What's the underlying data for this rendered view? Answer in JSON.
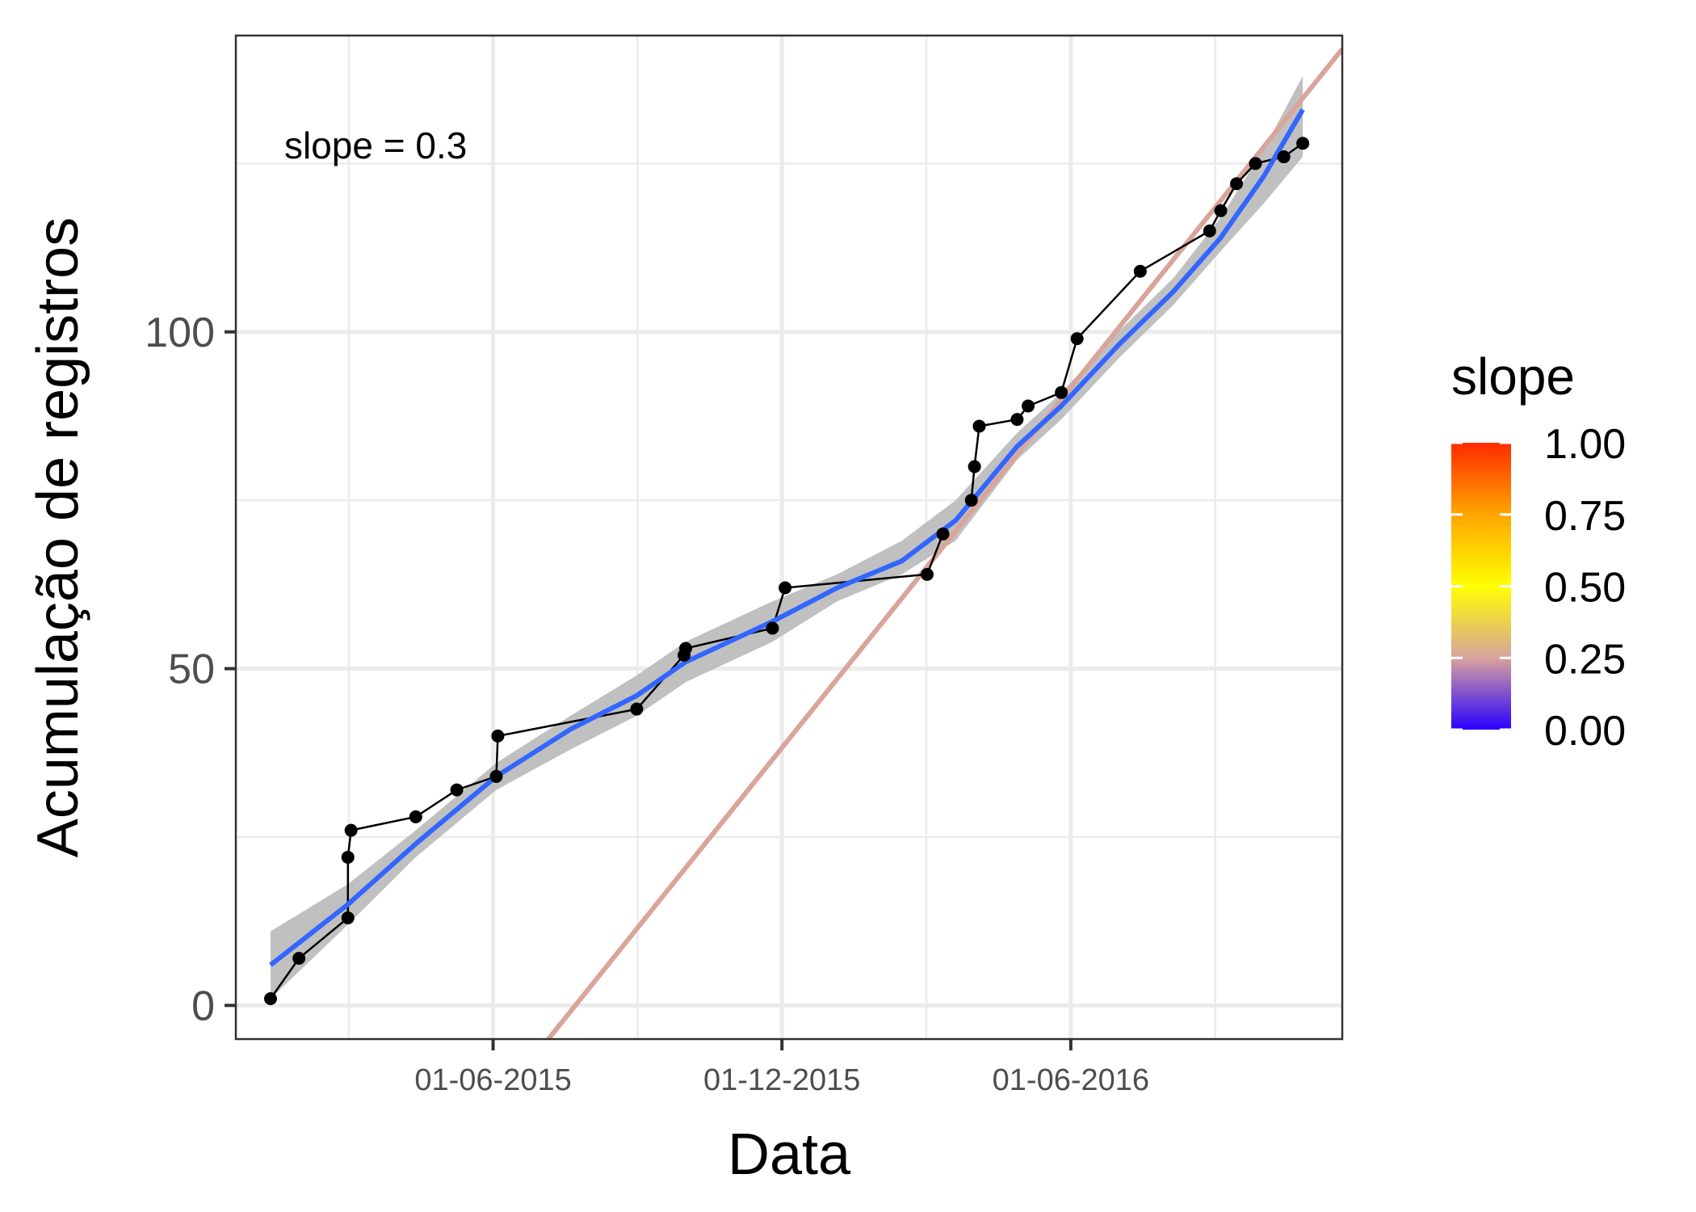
{
  "chart_data": {
    "type": "line",
    "xlabel": "Data",
    "ylabel": "Acumulação de registros",
    "annotation": "slope = 0.3",
    "x_ticks": [
      "01-06-2015",
      "01-12-2015",
      "01-06-2016"
    ],
    "y_ticks": [
      0,
      50,
      100
    ],
    "xlim": [
      "2014-12-20",
      "2016-11-20"
    ],
    "ylim": [
      -5,
      144
    ],
    "grid": true,
    "points": [
      {
        "x": "2015-01-11",
        "y": 1
      },
      {
        "x": "2015-01-29",
        "y": 7
      },
      {
        "x": "2015-03-01",
        "y": 13
      },
      {
        "x": "2015-03-01",
        "y": 22
      },
      {
        "x": "2015-03-03",
        "y": 26
      },
      {
        "x": "2015-04-13",
        "y": 28
      },
      {
        "x": "2015-05-09",
        "y": 32
      },
      {
        "x": "2015-06-03",
        "y": 34
      },
      {
        "x": "2015-06-04",
        "y": 40
      },
      {
        "x": "2015-08-31",
        "y": 44
      },
      {
        "x": "2015-09-30",
        "y": 52
      },
      {
        "x": "2015-10-01",
        "y": 53
      },
      {
        "x": "2015-11-25",
        "y": 56
      },
      {
        "x": "2015-12-03",
        "y": 62
      },
      {
        "x": "2016-03-02",
        "y": 64
      },
      {
        "x": "2016-03-12",
        "y": 70
      },
      {
        "x": "2016-03-30",
        "y": 75
      },
      {
        "x": "2016-04-01",
        "y": 80
      },
      {
        "x": "2016-04-04",
        "y": 86
      },
      {
        "x": "2016-04-28",
        "y": 87
      },
      {
        "x": "2016-05-05",
        "y": 89
      },
      {
        "x": "2016-05-26",
        "y": 91
      },
      {
        "x": "2016-06-05",
        "y": 99
      },
      {
        "x": "2016-07-15",
        "y": 109
      },
      {
        "x": "2016-08-28",
        "y": 115
      },
      {
        "x": "2016-09-04",
        "y": 118
      },
      {
        "x": "2016-09-14",
        "y": 122
      },
      {
        "x": "2016-09-26",
        "y": 125
      },
      {
        "x": "2016-10-14",
        "y": 126
      },
      {
        "x": "2016-10-26",
        "y": 128
      }
    ],
    "smooth": {
      "x": [
        "2015-01-11",
        "2015-03-01",
        "2015-04-13",
        "2015-06-03",
        "2015-07-20",
        "2015-08-31",
        "2015-10-01",
        "2015-11-25",
        "2016-01-05",
        "2016-02-15",
        "2016-03-20",
        "2016-04-28",
        "2016-05-26",
        "2016-07-01",
        "2016-08-05",
        "2016-09-04",
        "2016-10-01",
        "2016-10-26"
      ],
      "y": [
        6,
        15,
        24,
        34,
        41,
        46,
        51,
        57,
        62,
        66,
        72,
        83,
        89,
        98,
        106,
        114,
        123,
        133
      ],
      "band_low": [
        1,
        12,
        22,
        32,
        38,
        43,
        48,
        54,
        60,
        64,
        69,
        81,
        87,
        96,
        104,
        112,
        119,
        126
      ],
      "band_high": [
        11,
        18,
        26,
        36,
        43,
        49,
        54,
        60,
        64,
        69,
        75,
        85,
        91,
        100,
        108,
        117,
        127,
        138
      ]
    },
    "reference_line": {
      "slope": 0.3,
      "x_start": "2015-07-06",
      "y_start": -5,
      "x_end": "2016-11-20",
      "y_end": 142
    },
    "legend": {
      "title": "slope",
      "position": "right",
      "labels": [
        "1.00",
        "0.75",
        "0.50",
        "0.25",
        "0.00"
      ],
      "colors": [
        "#ff2a00",
        "#ffa600",
        "#ffff00",
        "#d8a39d",
        "#2a00ff"
      ]
    },
    "colors": {
      "smooth_line": "#3366ff",
      "band": "#bdbdbd",
      "reference_line": "#d9a59a",
      "points": "#000000",
      "grid": "#ebebeb"
    }
  }
}
